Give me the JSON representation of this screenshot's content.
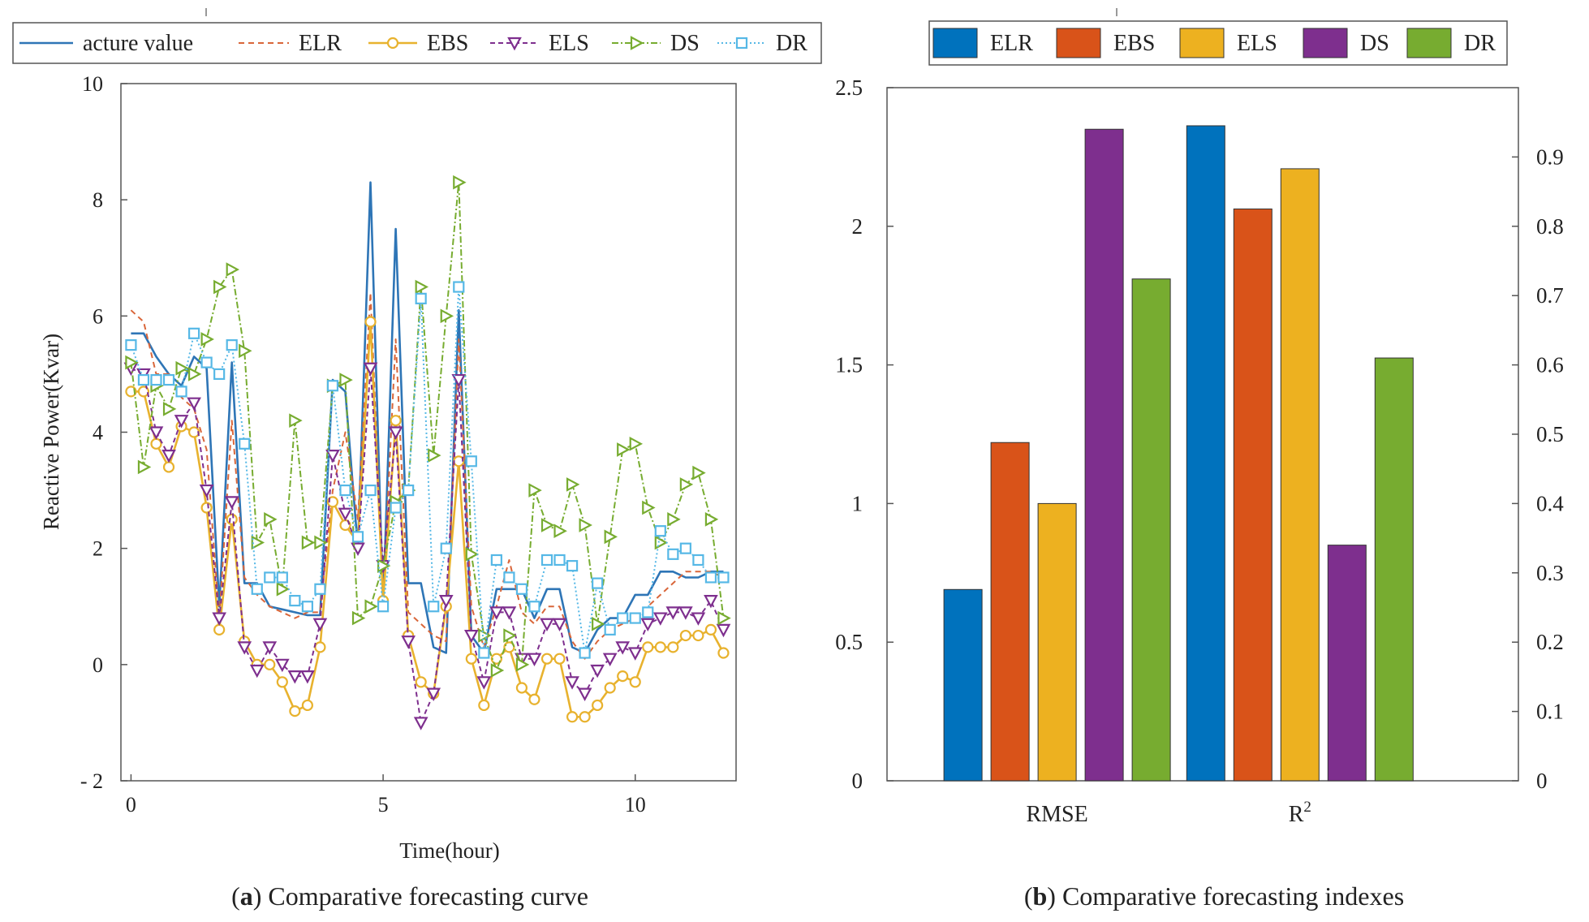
{
  "chart_data": [
    {
      "type": "line",
      "caption": {
        "letter": "a",
        "text": "Comparative forecasting curve"
      },
      "xlabel": "Time(hour)",
      "ylabel": "Reactive Power(Kvar)",
      "xlim": [
        -0.2,
        12
      ],
      "ylim": [
        -2,
        10
      ],
      "xticks": [
        0,
        5,
        10
      ],
      "yticks": [
        -2,
        0,
        2,
        4,
        6,
        8,
        10
      ],
      "ytick_labels": [
        "- 2",
        "0",
        "2",
        "4",
        "6",
        "8",
        "10"
      ],
      "legend_placement": "top",
      "x": [
        0,
        0.25,
        0.5,
        0.75,
        1.0,
        1.25,
        1.5,
        1.75,
        2.0,
        2.25,
        2.5,
        2.75,
        3.0,
        3.25,
        3.5,
        3.75,
        4.0,
        4.25,
        4.5,
        4.75,
        5.0,
        5.25,
        5.5,
        5.75,
        6.0,
        6.25,
        6.5,
        6.75,
        7.0,
        7.25,
        7.5,
        7.75,
        8.0,
        8.25,
        8.5,
        8.75,
        9.0,
        9.25,
        9.5,
        9.75,
        10.0,
        10.25,
        10.5,
        10.75,
        11.0,
        11.25,
        11.5,
        11.75
      ],
      "series": [
        {
          "name": "acture value",
          "color": "#2e75b6",
          "dash": "",
          "marker": "none",
          "values": [
            5.7,
            5.7,
            5.3,
            5.0,
            4.8,
            5.3,
            5.1,
            1.0,
            5.2,
            1.4,
            1.4,
            1.0,
            0.95,
            0.9,
            0.85,
            0.85,
            4.9,
            4.7,
            2.0,
            8.3,
            1.0,
            7.5,
            1.4,
            1.4,
            0.3,
            0.2,
            6.1,
            0.5,
            0.2,
            1.3,
            1.3,
            1.3,
            0.8,
            1.3,
            1.3,
            0.3,
            0.2,
            0.6,
            0.8,
            0.8,
            1.2,
            1.2,
            1.6,
            1.6,
            1.5,
            1.5,
            1.6,
            1.6
          ]
        },
        {
          "name": "ELR",
          "color": "#d9663a",
          "dash": "7,5",
          "marker": "none",
          "values": [
            6.1,
            5.9,
            5.0,
            5.0,
            4.6,
            4.4,
            3.7,
            0.8,
            4.2,
            1.5,
            1.2,
            1.0,
            0.9,
            0.8,
            0.9,
            0.9,
            3.0,
            4.0,
            2.5,
            6.4,
            1.2,
            5.6,
            0.9,
            0.7,
            0.5,
            0.4,
            5.6,
            1.0,
            0.3,
            1.0,
            1.8,
            0.9,
            0.7,
            1.0,
            1.0,
            0.4,
            0.1,
            0.4,
            0.6,
            0.7,
            0.8,
            1.0,
            1.2,
            1.4,
            1.6,
            1.6,
            1.6,
            1.5
          ]
        },
        {
          "name": "EBS",
          "color": "#e8b22e",
          "dash": "",
          "marker": "circle",
          "values": [
            4.7,
            4.7,
            3.8,
            3.4,
            4.1,
            4.0,
            2.7,
            0.6,
            2.5,
            0.4,
            0.0,
            0.0,
            -0.3,
            -0.8,
            -0.7,
            0.3,
            2.8,
            2.4,
            2.1,
            5.9,
            1.1,
            4.2,
            0.5,
            -0.3,
            -0.5,
            1.0,
            3.5,
            0.1,
            -0.7,
            0.1,
            0.3,
            -0.4,
            -0.6,
            0.1,
            0.1,
            -0.9,
            -0.9,
            -0.7,
            -0.4,
            -0.2,
            -0.3,
            0.3,
            0.3,
            0.3,
            0.5,
            0.5,
            0.6,
            0.2
          ]
        },
        {
          "name": "ELS",
          "color": "#7e2f8e",
          "dash": "6,4",
          "marker": "tri-down",
          "values": [
            5.1,
            5.0,
            4.0,
            3.6,
            4.2,
            4.5,
            3.0,
            0.8,
            2.8,
            0.3,
            -0.1,
            0.3,
            0.0,
            -0.2,
            -0.2,
            0.7,
            3.6,
            2.6,
            2.0,
            5.1,
            1.7,
            4.0,
            0.4,
            -1.0,
            -0.5,
            1.1,
            4.9,
            0.5,
            -0.3,
            0.9,
            0.9,
            0.1,
            0.1,
            0.7,
            0.7,
            -0.3,
            -0.5,
            -0.1,
            0.1,
            0.3,
            0.2,
            0.7,
            0.8,
            0.9,
            0.9,
            0.8,
            1.1,
            0.6
          ]
        },
        {
          "name": "DS",
          "color": "#77ac30",
          "dash": "8,3,2,3",
          "marker": "tri-right",
          "values": [
            5.2,
            3.4,
            4.8,
            4.4,
            5.1,
            5.0,
            5.6,
            6.5,
            6.8,
            5.4,
            2.1,
            2.5,
            1.3,
            4.2,
            2.1,
            2.1,
            4.8,
            4.9,
            0.8,
            1.0,
            1.7,
            2.8,
            3.0,
            6.5,
            3.6,
            6.0,
            8.3,
            1.9,
            0.5,
            -0.1,
            0.5,
            0.0,
            3.0,
            2.4,
            2.3,
            3.1,
            2.4,
            0.7,
            2.2,
            3.7,
            3.8,
            2.7,
            2.1,
            2.5,
            3.1,
            3.3,
            2.5,
            0.8
          ]
        },
        {
          "name": "DR",
          "color": "#56b8e6",
          "dash": "2,3",
          "marker": "square",
          "values": [
            5.5,
            4.9,
            4.9,
            4.9,
            4.7,
            5.7,
            5.2,
            5.0,
            5.5,
            3.8,
            1.3,
            1.5,
            1.5,
            1.1,
            1.0,
            1.3,
            4.8,
            3.0,
            2.2,
            3.0,
            1.0,
            2.7,
            3.0,
            6.3,
            1.0,
            2.0,
            6.5,
            3.5,
            0.2,
            1.8,
            1.5,
            1.3,
            1.0,
            1.8,
            1.8,
            1.7,
            0.2,
            1.4,
            0.6,
            0.8,
            0.8,
            0.9,
            2.3,
            1.9,
            2.0,
            1.8,
            1.5,
            1.5
          ]
        }
      ]
    },
    {
      "type": "bar",
      "caption": {
        "letter": "b",
        "text": "Comparative forecasting indexes"
      },
      "categories": [
        "RMSE",
        "R2"
      ],
      "category_labels": [
        {
          "base": "RMSE",
          "sup": ""
        },
        {
          "base": "R",
          "sup": "2"
        }
      ],
      "left_axis": {
        "ylim": [
          0,
          2.5
        ],
        "ticks": [
          0,
          0.5,
          1,
          1.5,
          2,
          2.5
        ],
        "tick_labels": [
          "0",
          "0.5",
          "1",
          "1.5",
          "2",
          "2.5"
        ]
      },
      "right_axis": {
        "ylim": [
          0,
          1.0
        ],
        "ticks": [
          0,
          0.1,
          0.2,
          0.3,
          0.4,
          0.5,
          0.6,
          0.7,
          0.8,
          0.9
        ],
        "tick_labels": [
          "0",
          "0.1",
          "0.2",
          "0.3",
          "0.4",
          "0.5",
          "0.6",
          "0.7",
          "0.8",
          "0.9"
        ]
      },
      "legend_placement": "top",
      "series": [
        {
          "name": "ELR",
          "color": "#0072bd",
          "values": [
            0.69,
            0.945
          ]
        },
        {
          "name": "EBS",
          "color": "#d95319",
          "values": [
            1.22,
            0.825
          ]
        },
        {
          "name": "ELS",
          "color": "#edb120",
          "values": [
            1.0,
            0.883
          ]
        },
        {
          "name": "DS",
          "color": "#7e2f8e",
          "values": [
            2.35,
            0.34
          ]
        },
        {
          "name": "DR",
          "color": "#77ac30",
          "values": [
            1.81,
            0.61
          ]
        }
      ],
      "axis_for_category": [
        "left",
        "right"
      ]
    }
  ]
}
